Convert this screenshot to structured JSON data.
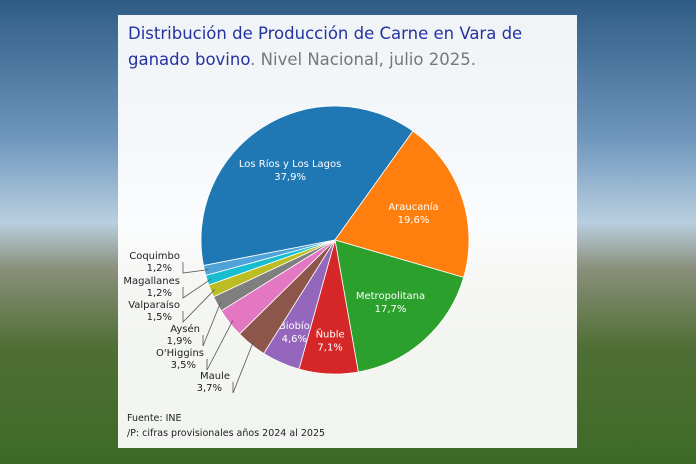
{
  "chart_data": {
    "type": "pie",
    "title": "Distribución de Producción de Carne en Vara de ganado bovino",
    "subtitle": ". Nivel Nacional, julio 2025.",
    "categories": [
      "Los Ríos y Los Lagos",
      "Araucanía",
      "Metropolitana",
      "Ñuble",
      "Biobío",
      "Maule",
      "O'Higgins",
      "Aysén",
      "Valparaíso",
      "Magallanes",
      "Coquimbo"
    ],
    "values": [
      37.9,
      19.6,
      17.7,
      7.1,
      4.6,
      3.7,
      3.5,
      1.9,
      1.5,
      1.2,
      1.2
    ],
    "value_labels": [
      "37,9%",
      "19,6%",
      "17,7%",
      "7,1%",
      "4,6%",
      "3,7%",
      "3,5%",
      "1,9%",
      "1,5%",
      "1,2%",
      "1,2%"
    ],
    "colors": [
      "#1f77b4",
      "#ff7f0e",
      "#2ca02c",
      "#d62728",
      "#9467bd",
      "#8c564b",
      "#e377c2",
      "#7f7f7f",
      "#bcbd22",
      "#17becf",
      "#4fa3d9"
    ],
    "source": "Fuente: INE",
    "note": "/P: cifras provisionales años 2024 al 2025"
  }
}
